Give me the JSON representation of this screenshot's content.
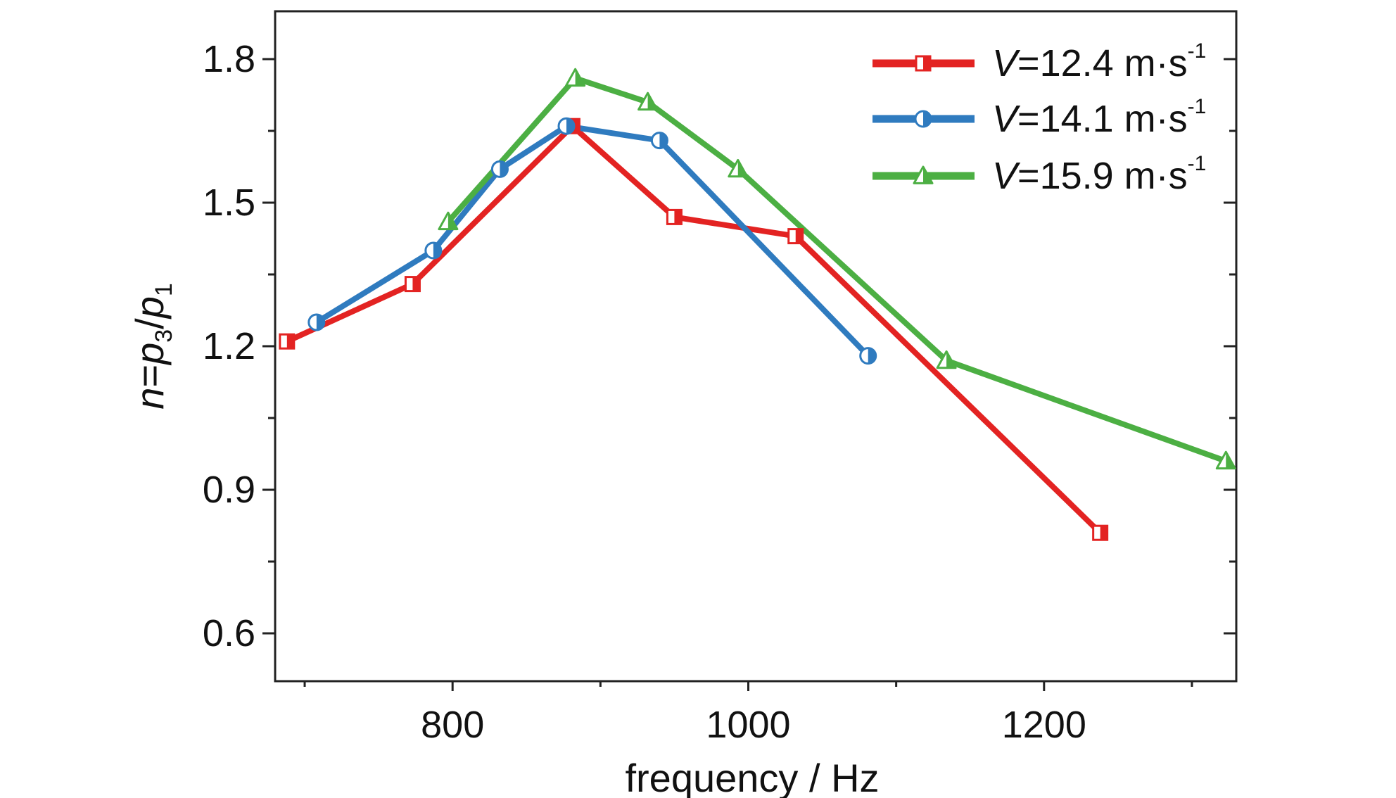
{
  "chart_data": {
    "type": "line",
    "xlabel": "frequency / Hz",
    "ylabel_parts": {
      "italic_n": "n",
      "eq": "=",
      "italic_p3": "p",
      "sub3": "3",
      "slash": "/",
      "italic_p1": "p",
      "sub1": "1"
    },
    "xlim": [
      680,
      1330
    ],
    "ylim": [
      0.5,
      1.9
    ],
    "x_ticks": [
      800,
      1000,
      1200
    ],
    "x_minor_ticks": [
      700,
      900,
      1100,
      1300
    ],
    "y_ticks": [
      0.6,
      0.9,
      1.2,
      1.5,
      1.8
    ],
    "y_tick_labels": [
      "0.6",
      "0.9",
      "1.2",
      "1.5",
      "1.8"
    ],
    "y_minor_ticks": [
      0.75,
      1.05,
      1.35,
      1.65
    ],
    "legend_position": "top-right",
    "series": [
      {
        "name_prefix": "V",
        "name_value": "=12.4 m·s",
        "name_sup": "-1",
        "color": "#e32322",
        "marker": "square-half",
        "points": [
          [
            688,
            1.21
          ],
          [
            773,
            1.33
          ],
          [
            881,
            1.66
          ],
          [
            950,
            1.47
          ],
          [
            1032,
            1.43
          ],
          [
            1238,
            0.81
          ]
        ]
      },
      {
        "name_prefix": "V",
        "name_value": "=14.1 m·s",
        "name_sup": "-1",
        "color": "#2f7bbf",
        "marker": "circle-half",
        "points": [
          [
            708,
            1.25
          ],
          [
            787,
            1.4
          ],
          [
            832,
            1.57
          ],
          [
            877,
            1.66
          ],
          [
            940,
            1.63
          ],
          [
            1081,
            1.18
          ]
        ]
      },
      {
        "name_prefix": "V",
        "name_value": "=15.9 m·s",
        "name_sup": "-1",
        "color": "#4caf43",
        "marker": "triangle-half",
        "points": [
          [
            797,
            1.46
          ],
          [
            883,
            1.76
          ],
          [
            932,
            1.71
          ],
          [
            993,
            1.57
          ],
          [
            1134,
            1.17
          ],
          [
            1323,
            0.96
          ]
        ]
      }
    ]
  }
}
